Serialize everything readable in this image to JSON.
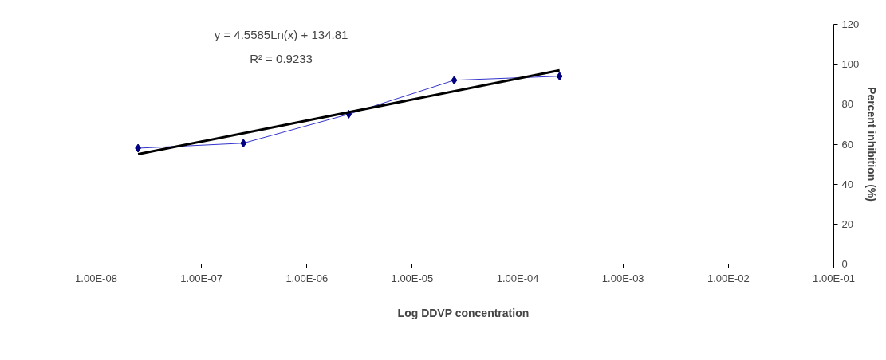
{
  "chart_data": {
    "type": "line",
    "xlabel": "Log  DDVP concentration",
    "ylabel": "Percent inhibition (%)",
    "log": "x",
    "grid": false,
    "xlim": [
      1e-08,
      0.1
    ],
    "xticks": [
      {
        "value": 1e-08,
        "label": "1.00E-08"
      },
      {
        "value": 1e-07,
        "label": "1.00E-07"
      },
      {
        "value": 1e-06,
        "label": "1.00E-06"
      },
      {
        "value": 1e-05,
        "label": "1.00E-05"
      },
      {
        "value": 0.0001,
        "label": "1.00E-04"
      },
      {
        "value": 0.001,
        "label": "1.00E-03"
      },
      {
        "value": 0.01,
        "label": "1.00E-02"
      },
      {
        "value": 0.1,
        "label": "1.00E-01"
      }
    ],
    "ylim": [
      0,
      120
    ],
    "yticks": [
      0,
      20,
      40,
      60,
      80,
      100,
      120
    ],
    "annotations": [
      "y = 4.5585Ln(x) + 134.81",
      "R² = 0.9233"
    ],
    "series": [
      {
        "marker": "diamond",
        "color": "#000080",
        "x": [
          2.5e-08,
          2.5e-07,
          2.5e-06,
          2.5e-05,
          0.00025
        ],
        "values": [
          58,
          60.5,
          75,
          92,
          94
        ]
      },
      {
        "marker": "none",
        "color": "#000000",
        "x": [
          2.5e-08,
          0.00025
        ],
        "values": [
          55.0,
          97.0
        ]
      }
    ]
  }
}
